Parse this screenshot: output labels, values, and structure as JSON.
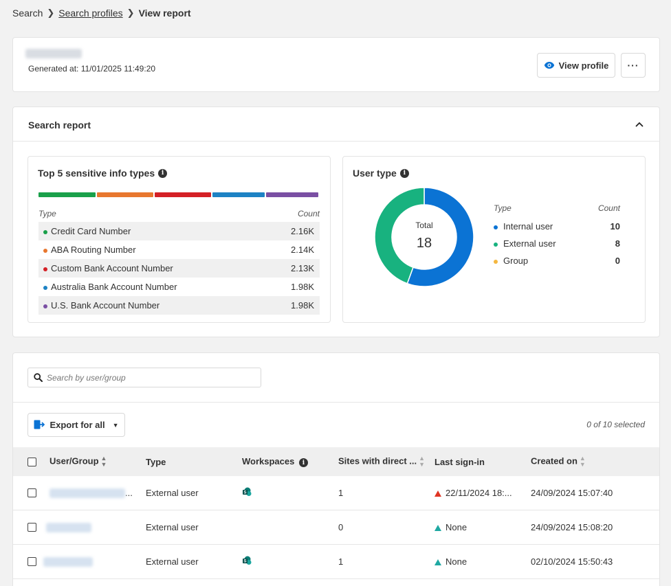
{
  "breadcrumb": {
    "root": "Search",
    "parent": "Search profiles",
    "current": "View report"
  },
  "header": {
    "generated": "Generated at: 11/01/2025 11:49:20",
    "view_profile": "View profile",
    "more": "···"
  },
  "report": {
    "title": "Search report",
    "sensitive": {
      "title": "Top 5 sensitive info types",
      "col_type": "Type",
      "col_count": "Count",
      "rows": [
        {
          "label": "Credit Card Number",
          "count": "2.16K",
          "color": "#1aa04a"
        },
        {
          "label": "ABA Routing Number",
          "count": "2.14K",
          "color": "#e8772e"
        },
        {
          "label": "Custom Bank Account Number",
          "count": "2.13K",
          "color": "#d42026"
        },
        {
          "label": "Australia Bank Account Number",
          "count": "1.98K",
          "color": "#1d82c4"
        },
        {
          "label": "U.S. Bank Account Number",
          "count": "1.98K",
          "color": "#7a4fa3"
        }
      ]
    },
    "user_type": {
      "title": "User type",
      "total_label": "Total",
      "total": "18",
      "col_type": "Type",
      "col_count": "Count",
      "rows": [
        {
          "label": "Internal user",
          "count": "10",
          "value": 10,
          "color": "#0b73d4"
        },
        {
          "label": "External user",
          "count": "8",
          "value": 8,
          "color": "#18b27f"
        },
        {
          "label": "Group",
          "count": "0",
          "value": 0,
          "color": "#f4b740"
        }
      ]
    }
  },
  "users": {
    "search_placeholder": "Search by user/group",
    "export_label": "Export for all",
    "selected": "0 of 10 selected",
    "columns": {
      "user": "User/Group",
      "type": "Type",
      "workspaces": "Workspaces",
      "sites": "Sites with direct ...",
      "last_signin": "Last sign-in",
      "created": "Created on"
    },
    "rows": [
      {
        "type": "External user",
        "sites": "1",
        "last_signin": "22/11/2024 18:...",
        "created": "24/09/2024 15:07:40",
        "trend": "red",
        "workspace": true,
        "user_suffix": "..."
      },
      {
        "type": "External user",
        "sites": "0",
        "last_signin": "None",
        "created": "24/09/2024 15:08:20",
        "trend": "teal",
        "workspace": false,
        "user_suffix": ""
      },
      {
        "type": "External user",
        "sites": "1",
        "last_signin": "None",
        "created": "02/10/2024 15:50:43",
        "trend": "teal",
        "workspace": true,
        "user_suffix": ""
      }
    ]
  }
}
